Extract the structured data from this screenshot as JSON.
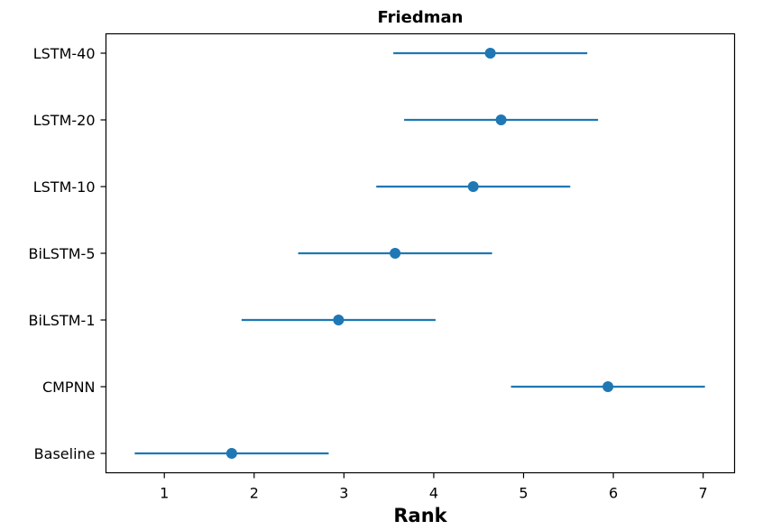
{
  "chart_data": {
    "type": "scatter",
    "title": "Friedman",
    "xlabel": "Rank",
    "ylabel": "",
    "xlim": [
      0.35,
      7.35
    ],
    "x_ticks": [
      1,
      2,
      3,
      4,
      5,
      6,
      7
    ],
    "grid": false,
    "categories": [
      "LSTM-40",
      "LSTM-20",
      "LSTM-10",
      "BiLSTM-5",
      "BiLSTM-1",
      "CMPNN",
      "Baseline"
    ],
    "series": [
      {
        "color": "#1f77b4",
        "values": [
          4.63,
          4.75,
          4.44,
          3.57,
          2.94,
          5.94,
          1.75
        ],
        "interval_low": [
          3.55,
          3.67,
          3.36,
          2.49,
          1.86,
          4.86,
          0.67
        ],
        "interval_high": [
          5.71,
          5.83,
          5.52,
          4.65,
          4.02,
          7.02,
          2.83
        ]
      }
    ]
  }
}
